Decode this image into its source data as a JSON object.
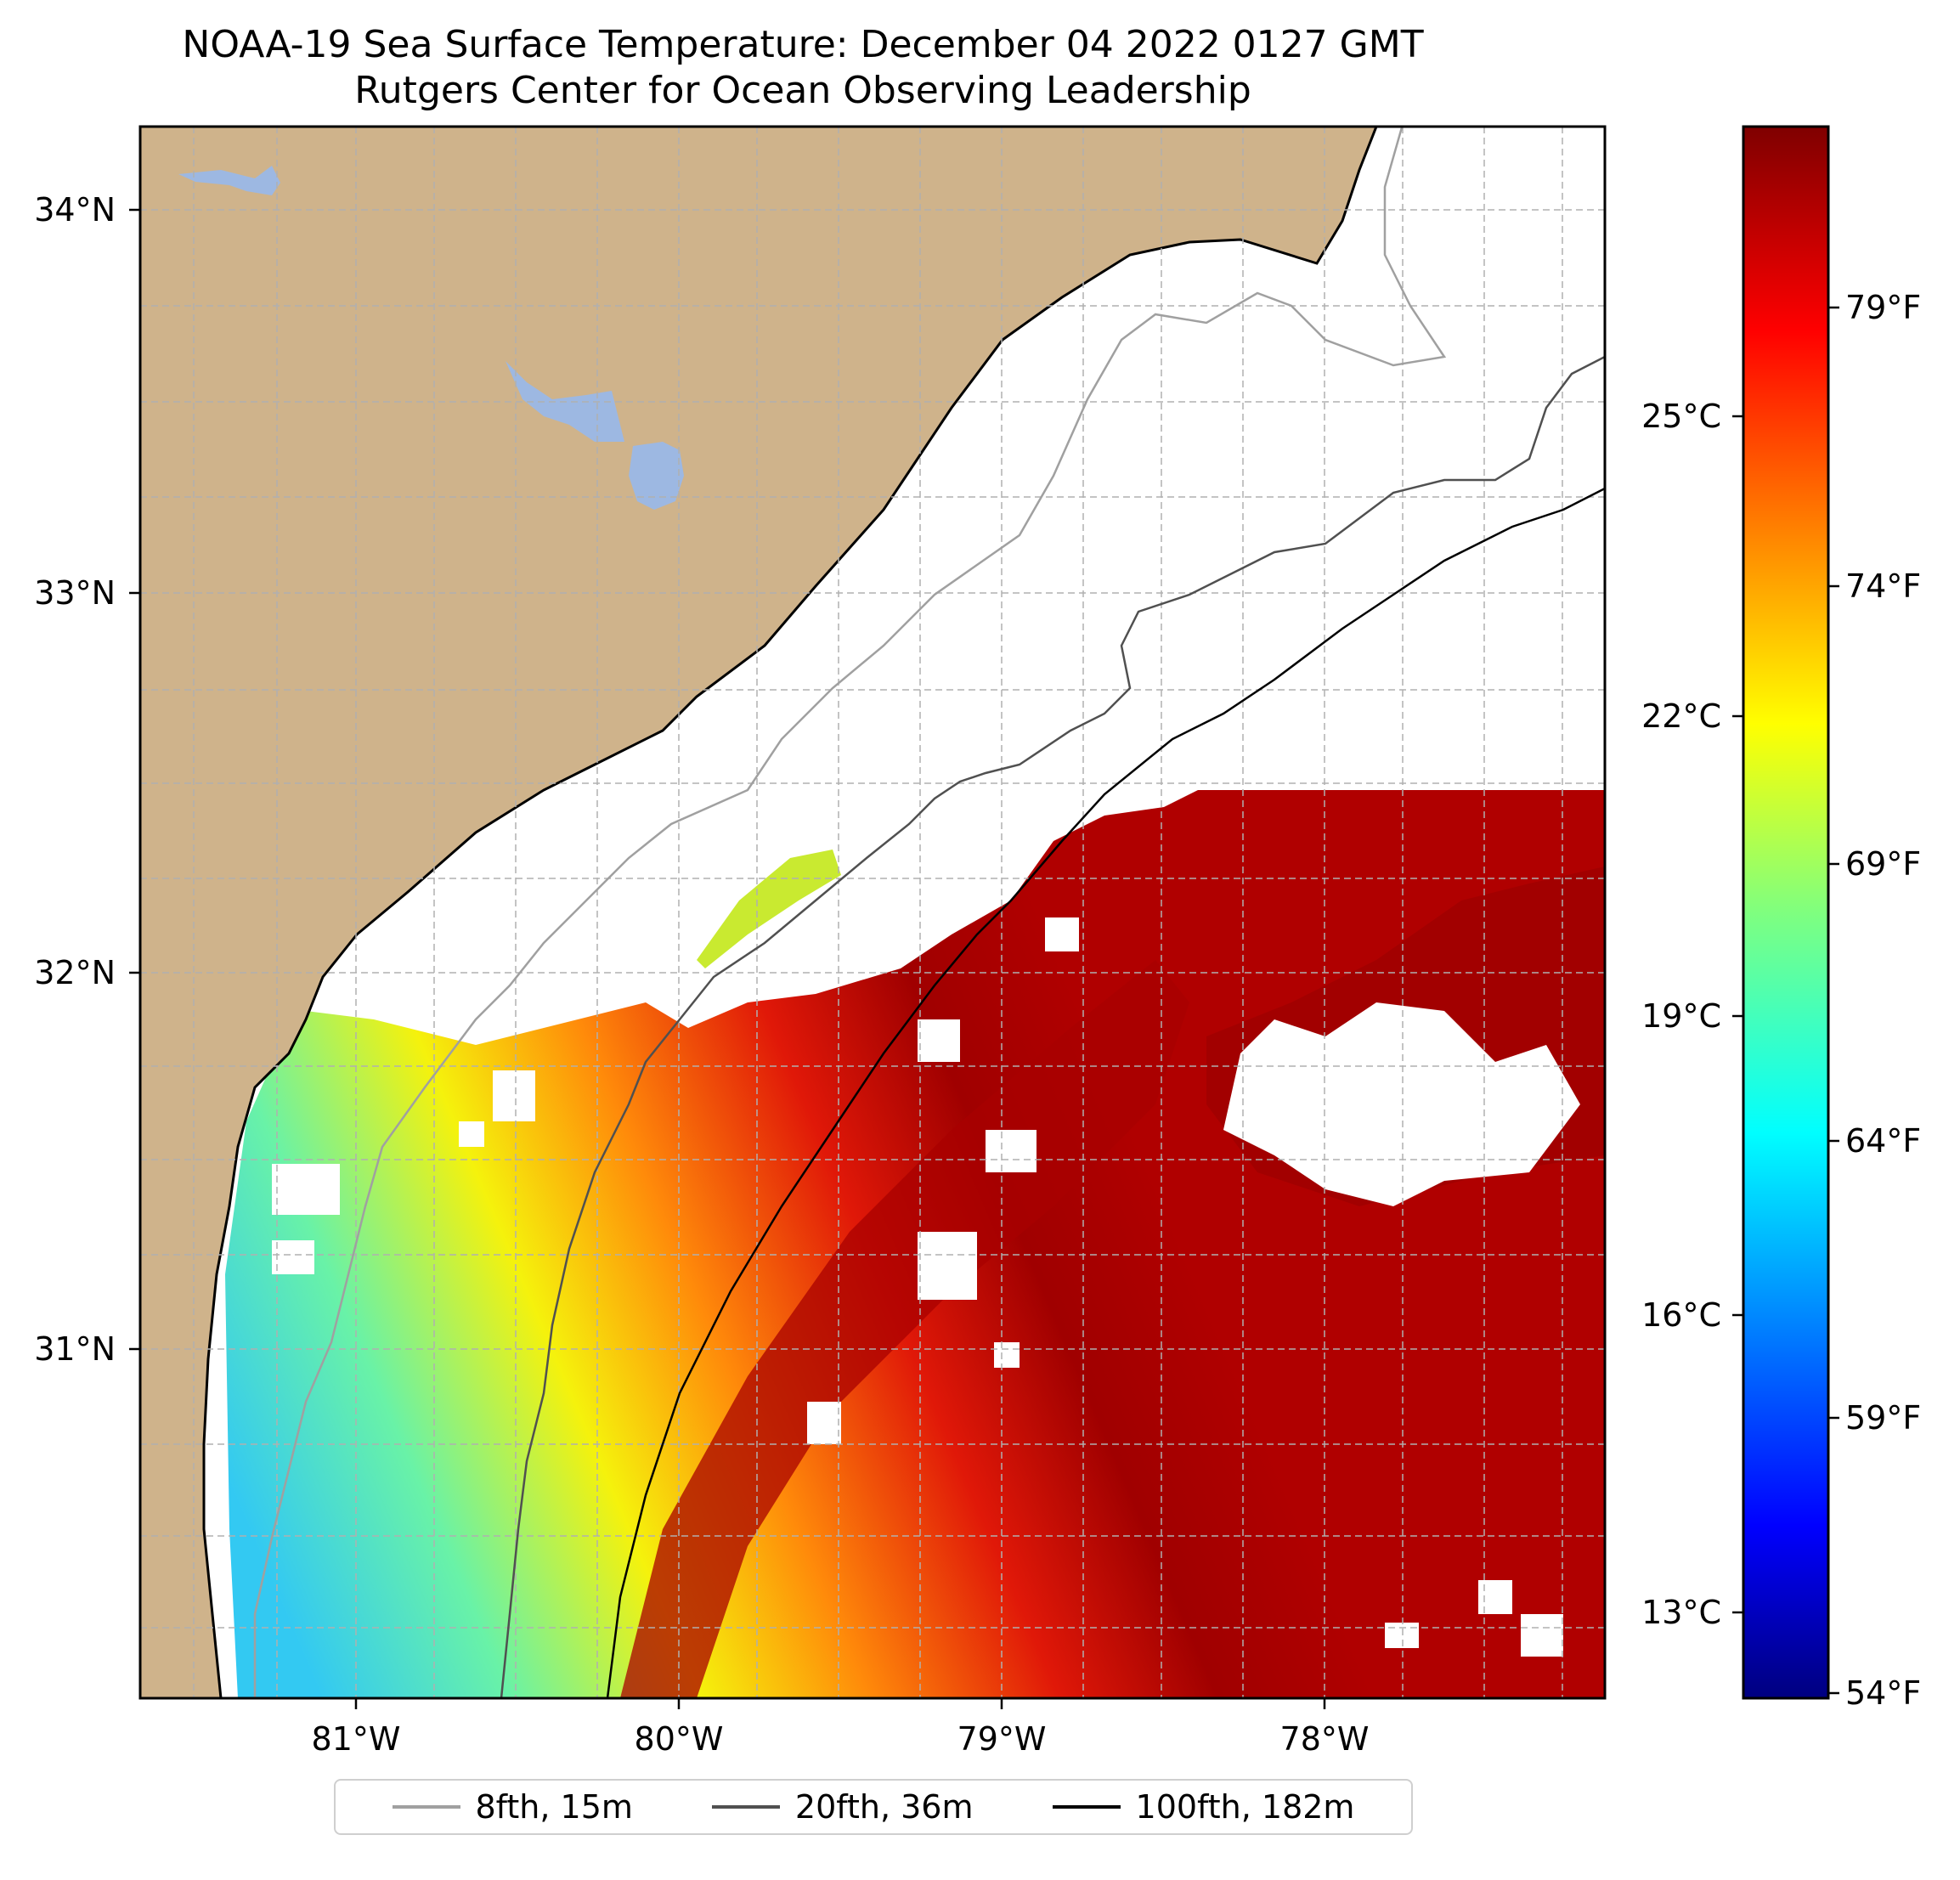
{
  "title_line1": "NOAA-19 Sea Surface Temperature: December 04 2022 0127 GMT",
  "title_line2": "Rutgers Center for Ocean Observing Leadership",
  "map": {
    "lon_ticks": [
      "81°W",
      "80°W",
      "79°W",
      "78°W"
    ],
    "lat_ticks": [
      "34°N",
      "33°N",
      "32°N",
      "31°N"
    ],
    "land_color": "#cfb38b",
    "lake_color": "#9db8e2",
    "gridlines": true
  },
  "colorbar": {
    "colormap": "jet",
    "celsius_ticks": [
      "25°C",
      "22°C",
      "19°C",
      "16°C",
      "13°C"
    ],
    "fahrenheit_ticks": [
      "79°F",
      "74°F",
      "69°F",
      "64°F",
      "59°F",
      "54°F"
    ]
  },
  "legend": {
    "items": [
      {
        "label": "8fth, 15m",
        "color": "#a0a0a0"
      },
      {
        "label": "20fth, 36m",
        "color": "#505050"
      },
      {
        "label": "100fth, 182m",
        "color": "#000000"
      }
    ]
  }
}
